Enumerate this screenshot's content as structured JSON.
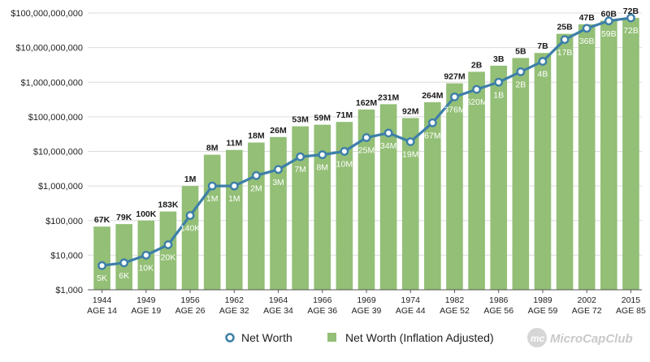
{
  "chart_data": {
    "type": "bar",
    "log_scale": true,
    "ylim": [
      1000,
      100000000000
    ],
    "y_ticks": [
      {
        "value": 1000,
        "label": "$1,000"
      },
      {
        "value": 10000,
        "label": "$10,000"
      },
      {
        "value": 100000,
        "label": "$100,000"
      },
      {
        "value": 1000000,
        "label": "$1,000,000"
      },
      {
        "value": 10000000,
        "label": "$10,000,000"
      },
      {
        "value": 100000000,
        "label": "$100,000,000"
      },
      {
        "value": 1000000000,
        "label": "$1,000,000,000"
      },
      {
        "value": 10000000000,
        "label": "$10,000,000,000"
      },
      {
        "value": 100000000000,
        "label": "$100,000,000,000"
      }
    ],
    "grid": true,
    "legend_position": "bottom",
    "x_tick_labels": [
      {
        "bar_index": 0,
        "year": "1944",
        "age": "AGE 14"
      },
      {
        "bar_index": 2,
        "year": "1949",
        "age": "AGE 19"
      },
      {
        "bar_index": 4,
        "year": "1956",
        "age": "AGE 26"
      },
      {
        "bar_index": 6,
        "year": "1962",
        "age": "AGE 32"
      },
      {
        "bar_index": 8,
        "year": "1964",
        "age": "AGE 34"
      },
      {
        "bar_index": 10,
        "year": "1966",
        "age": "AGE 36"
      },
      {
        "bar_index": 12,
        "year": "1969",
        "age": "AGE 39"
      },
      {
        "bar_index": 14,
        "year": "1974",
        "age": "AGE 44"
      },
      {
        "bar_index": 16,
        "year": "1982",
        "age": "AGE 52"
      },
      {
        "bar_index": 18,
        "year": "1986",
        "age": "AGE 56"
      },
      {
        "bar_index": 20,
        "year": "1989",
        "age": "AGE 59"
      },
      {
        "bar_index": 22,
        "year": "2002",
        "age": "AGE 72"
      },
      {
        "bar_index": 24,
        "year": "2015",
        "age": "AGE 85"
      }
    ],
    "series": [
      {
        "name": "Net Worth (Inflation Adjusted)",
        "kind": "bar",
        "color": "#93bf76",
        "values": [
          67000,
          79000,
          100000,
          183000,
          1000000,
          8000000,
          11000000,
          18000000,
          26000000,
          53000000,
          59000000,
          71000000,
          162000000,
          231000000,
          92000000,
          264000000,
          927000000,
          2000000000,
          3000000000,
          5000000000,
          7000000000,
          25000000000,
          47000000000,
          60000000000,
          72000000000
        ],
        "labels": [
          "67K",
          "79K",
          "100K",
          "183K",
          "1M",
          "8M",
          "11M",
          "18M",
          "26M",
          "53M",
          "59M",
          "71M",
          "162M",
          "231M",
          "92M",
          "264M",
          "927M",
          "2B",
          "3B",
          "5B",
          "7B",
          "25B",
          "47B",
          "60B",
          "72B"
        ]
      },
      {
        "name": "Net Worth",
        "kind": "line",
        "color": "#3d7fa8",
        "values": [
          5000,
          6000,
          10000,
          20000,
          140000,
          1000000,
          1000000,
          2000000,
          3000000,
          7000000,
          8000000,
          10000000,
          25000000,
          34000000,
          19000000,
          67000000,
          376000000,
          620000000,
          1000000000,
          2000000000,
          4000000000,
          17000000000,
          36000000000,
          59000000000,
          72000000000
        ],
        "labels": [
          "5K",
          "6K",
          "10K",
          "20K",
          "140K",
          "1M",
          "1M",
          "2M",
          "3M",
          "7M",
          "8M",
          "10M",
          "25M",
          "34M",
          "19M",
          "67M",
          "376M",
          "620M",
          "1B",
          "2B",
          "4B",
          "17B",
          "36B",
          "59B",
          "72B"
        ]
      }
    ]
  },
  "legend": {
    "line_label": "Net Worth",
    "bar_label": "Net Worth (Inflation Adjusted)"
  },
  "watermark": {
    "logo_text": "mc",
    "text": "MicroCapClub"
  }
}
